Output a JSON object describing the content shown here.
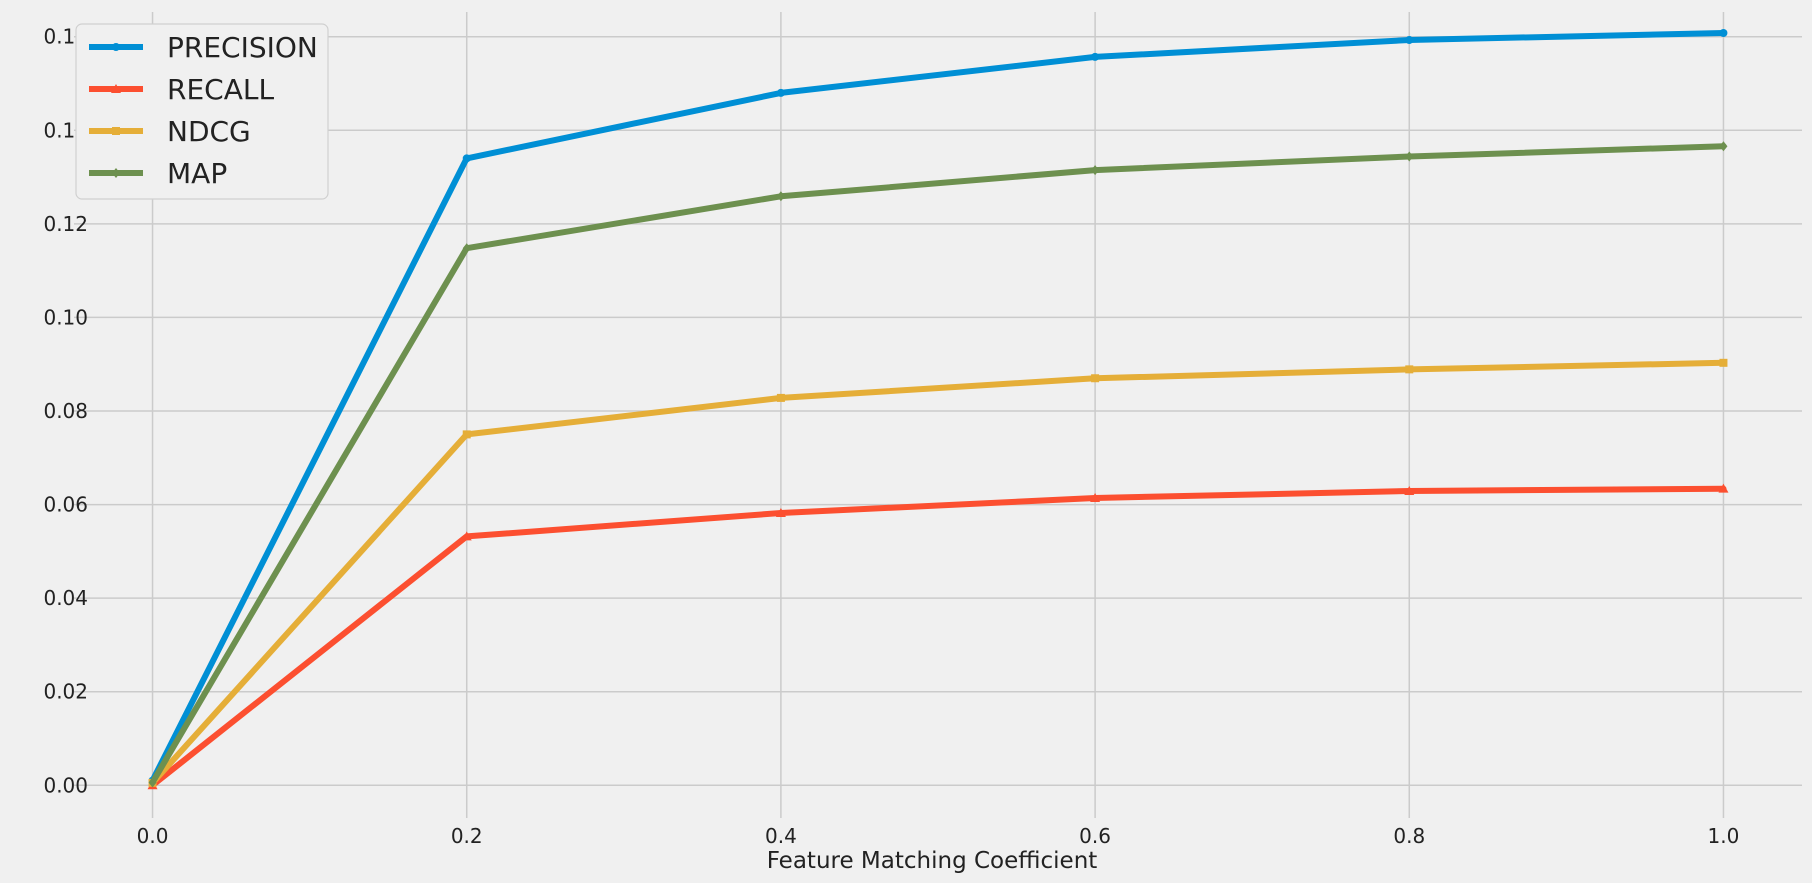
{
  "chart_data": {
    "type": "line",
    "x": [
      0.0,
      0.2,
      0.4,
      0.6,
      0.8,
      1.0
    ],
    "xlabel": "Feature Matching Coefficient",
    "ylabel": "",
    "xlim": [
      -0.05,
      1.05
    ],
    "ylim": [
      -0.007,
      0.167
    ],
    "xticks": [
      0.0,
      0.2,
      0.4,
      0.6,
      0.8,
      1.0
    ],
    "xtick_labels": [
      "0.0",
      "0.2",
      "0.4",
      "0.6",
      "0.8",
      "1.0"
    ],
    "yticks": [
      0.0,
      0.02,
      0.04,
      0.06,
      0.08,
      0.1,
      0.12,
      0.14,
      0.16
    ],
    "ytick_labels": [
      "0.00",
      "0.02",
      "0.04",
      "0.06",
      "0.08",
      "0.10",
      "0.12",
      "0.14",
      "0.16"
    ],
    "grid": true,
    "legend_position": "top-left",
    "series": [
      {
        "name": "PRECISION",
        "color": "#008fd5",
        "marker": "circle",
        "values": [
          0.001,
          0.134,
          0.148,
          0.1557,
          0.1593,
          0.1608
        ]
      },
      {
        "name": "RECALL",
        "color": "#fc4f30",
        "marker": "triangle",
        "values": [
          0.0,
          0.0532,
          0.0582,
          0.0614,
          0.0629,
          0.0634
        ]
      },
      {
        "name": "NDCG",
        "color": "#e5ae38",
        "marker": "square",
        "values": [
          0.0005,
          0.075,
          0.0828,
          0.087,
          0.0889,
          0.0903
        ]
      },
      {
        "name": "MAP",
        "color": "#6d904f",
        "marker": "diamond",
        "values": [
          0.0006,
          0.1148,
          0.1259,
          0.1315,
          0.1344,
          0.1366
        ]
      }
    ]
  }
}
